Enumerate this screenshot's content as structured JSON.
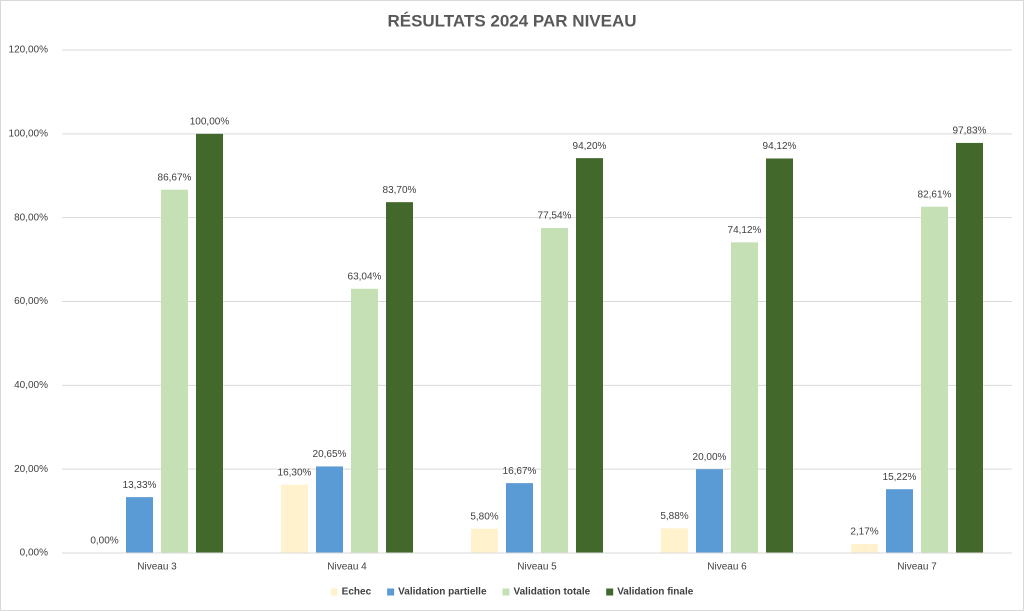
{
  "chart_data": {
    "type": "bar",
    "title": "RÉSULTATS 2024 PAR NIVEAU",
    "categories": [
      "Niveau 3",
      "Niveau 4",
      "Niveau 5",
      "Niveau 6",
      "Niveau 7"
    ],
    "series": [
      {
        "name": "Echec",
        "color": "#fff2cc",
        "values": [
          0,
          16.3,
          5.8,
          5.88,
          2.17
        ],
        "value_labels": [
          "0,00%",
          "16,30%",
          "5,80%",
          "5,88%",
          "2,17%"
        ]
      },
      {
        "name": "Validation partielle",
        "color": "#5b9bd5",
        "values": [
          13.33,
          20.65,
          16.67,
          20,
          15.22
        ],
        "value_labels": [
          "13,33%",
          "20,65%",
          "16,67%",
          "20,00%",
          "15,22%"
        ]
      },
      {
        "name": "Validation totale",
        "color": "#c5e0b4",
        "values": [
          86.67,
          63.04,
          77.54,
          74.12,
          82.61
        ],
        "value_labels": [
          "86,67%",
          "63,04%",
          "77,54%",
          "74,12%",
          "82,61%"
        ]
      },
      {
        "name": "Validation finale",
        "color": "#43682b",
        "values": [
          100,
          83.7,
          94.2,
          94.12,
          97.83
        ],
        "value_labels": [
          "100,00%",
          "83,70%",
          "94,20%",
          "94,12%",
          "97,83%"
        ]
      }
    ],
    "ylim": [
      0,
      120
    ],
    "yticks": [
      {
        "value": 0,
        "label": "0,00%"
      },
      {
        "value": 20,
        "label": "20,00%"
      },
      {
        "value": 40,
        "label": "40,00%"
      },
      {
        "value": 60,
        "label": "60,00%"
      },
      {
        "value": 80,
        "label": "80,00%"
      },
      {
        "value": 100,
        "label": "100,00%"
      },
      {
        "value": 120,
        "label": "120,00%"
      }
    ],
    "grid": true,
    "legend": "bottom"
  }
}
